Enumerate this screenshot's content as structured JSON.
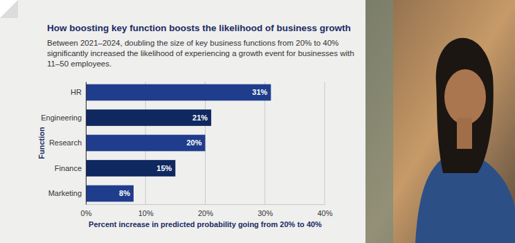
{
  "chart_data": {
    "type": "bar",
    "orientation": "horizontal",
    "title": "How boosting key function boosts the likelihood of business growth",
    "subtitle": "Between 2021–2024, doubling the size of key business functions from 20% to 40% significantly increased the likelihood of experiencing a growth event for businesses with 11–50 employees.",
    "y_label": "Function",
    "x_label": "Percent increase in predicted probability going from 20% to 40%",
    "categories": [
      "HR",
      "Engineering",
      "Research",
      "Finance",
      "Marketing"
    ],
    "values": [
      31,
      21,
      20,
      15,
      8
    ],
    "value_labels": [
      "31%",
      "21%",
      "20%",
      "15%",
      "8%"
    ],
    "colors": [
      "#1f3d8c",
      "#102860",
      "#1f3d8c",
      "#102860",
      "#1f3d8c"
    ],
    "xlim": [
      0,
      40
    ],
    "xticks": [
      {
        "value": 0,
        "label": "0%"
      },
      {
        "value": 10,
        "label": "10%"
      },
      {
        "value": 20,
        "label": "20%"
      },
      {
        "value": 30,
        "label": "30%"
      },
      {
        "value": 40,
        "label": "40%"
      }
    ],
    "grid": true,
    "data_labels": true
  }
}
